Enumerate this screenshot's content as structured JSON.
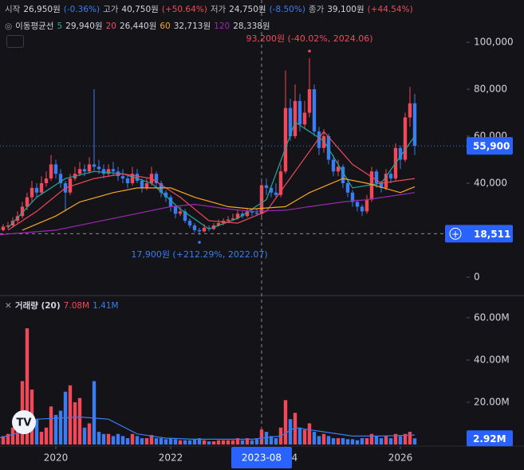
{
  "chart_data": {
    "type": "candlestick",
    "header": [
      {
        "label": "시작",
        "value": "26,950원",
        "change": "(-0.36%)",
        "dir": "down"
      },
      {
        "label": "고가",
        "value": "40,750원",
        "change": "(+50.64%)",
        "dir": "up"
      },
      {
        "label": "저가",
        "value": "24,750원",
        "change": "(-8.50%)",
        "dir": "down"
      },
      {
        "label": "종가",
        "value": "39,100원",
        "change": "(+44.54%)",
        "dir": "up"
      }
    ],
    "ma_title": "이동평균선",
    "x": [
      "2019-01",
      "2019-02",
      "2019-03",
      "2019-04",
      "2019-05",
      "2019-06",
      "2019-07",
      "2019-08",
      "2019-09",
      "2019-10",
      "2019-11",
      "2019-12",
      "2020-01",
      "2020-02",
      "2020-03",
      "2020-04",
      "2020-05",
      "2020-06",
      "2020-07",
      "2020-08",
      "2020-09",
      "2020-10",
      "2020-11",
      "2020-12",
      "2021-01",
      "2021-02",
      "2021-03",
      "2021-04",
      "2021-05",
      "2021-06",
      "2021-07",
      "2021-08",
      "2021-09",
      "2021-10",
      "2021-11",
      "2021-12",
      "2022-01",
      "2022-02",
      "2022-03",
      "2022-04",
      "2022-05",
      "2022-06",
      "2022-07",
      "2022-08",
      "2022-09",
      "2022-10",
      "2022-11",
      "2022-12",
      "2023-01",
      "2023-02",
      "2023-03",
      "2023-04",
      "2023-05",
      "2023-06",
      "2023-07",
      "2023-08",
      "2023-09",
      "2023-10",
      "2023-11",
      "2023-12",
      "2024-01",
      "2024-02",
      "2024-03",
      "2024-04",
      "2024-05",
      "2024-06",
      "2024-07",
      "2024-08",
      "2024-09",
      "2024-10",
      "2024-11",
      "2024-12",
      "2025-01",
      "2025-02",
      "2025-03",
      "2025-04",
      "2025-05",
      "2025-06",
      "2025-07",
      "2025-08",
      "2025-09",
      "2025-10",
      "2025-11",
      "2025-12",
      "2026-01",
      "2026-02",
      "2026-03",
      "2026-04"
    ],
    "open": [
      21000,
      20000,
      21500,
      22000,
      24000,
      26000,
      30000,
      34000,
      38000,
      36000,
      40000,
      42000,
      48000,
      44000,
      40000,
      36000,
      42000,
      44000,
      46000,
      45000,
      48000,
      47000,
      46000,
      44000,
      46000,
      45000,
      43000,
      42000,
      40000,
      44000,
      41000,
      38000,
      40000,
      44000,
      40000,
      36000,
      34000,
      30000,
      27000,
      28000,
      24000,
      22000,
      20000,
      19500,
      21000,
      20500,
      22000,
      23000,
      24000,
      24500,
      25000,
      27000,
      26000,
      28000,
      27500,
      26950,
      39100,
      38000,
      36000,
      35000,
      45000,
      72000,
      60000,
      75000,
      65000,
      70000,
      80000,
      62000,
      55000,
      60000,
      50000,
      45000,
      47000,
      40000,
      36000,
      32000,
      30000,
      28000,
      33000,
      45000,
      40000,
      38000,
      44000,
      42000,
      55000,
      50000,
      68000,
      74000
    ],
    "high": [
      22500,
      22500,
      23500,
      25500,
      28000,
      32000,
      36000,
      41000,
      40000,
      43000,
      45000,
      52000,
      50000,
      46000,
      41000,
      44000,
      47000,
      49000,
      48000,
      51000,
      80000,
      50000,
      48000,
      48000,
      49000,
      47000,
      46000,
      43000,
      47000,
      46000,
      42000,
      42000,
      47000,
      45000,
      41000,
      37000,
      35000,
      31000,
      30000,
      29000,
      25000,
      23000,
      21000,
      22500,
      22000,
      23000,
      24500,
      25000,
      26000,
      27000,
      28500,
      28000,
      29500,
      29000,
      29000,
      40750,
      42000,
      39000,
      40000,
      48000,
      88000,
      76000,
      82000,
      78000,
      75000,
      93200,
      82000,
      64000,
      63000,
      61000,
      52000,
      50000,
      48000,
      42000,
      37000,
      33000,
      31000,
      35000,
      47000,
      46000,
      41000,
      46000,
      45000,
      57000,
      56000,
      70000,
      81000,
      78000
    ],
    "low": [
      19000,
      19500,
      20500,
      21000,
      23000,
      25000,
      28500,
      32000,
      34000,
      35000,
      38500,
      41000,
      42000,
      38000,
      28000,
      35000,
      41000,
      43000,
      43000,
      44000,
      45000,
      44000,
      42000,
      43000,
      43000,
      41000,
      40000,
      38000,
      39000,
      40000,
      36000,
      37000,
      39000,
      38000,
      34000,
      32000,
      28000,
      25000,
      26000,
      23000,
      21000,
      19000,
      17900,
      19000,
      19500,
      20000,
      21500,
      22000,
      23000,
      24000,
      24500,
      25000,
      25500,
      26000,
      26000,
      24750,
      35000,
      34000,
      34000,
      34000,
      44000,
      58000,
      59000,
      62000,
      63000,
      68000,
      60000,
      52000,
      53000,
      48000,
      43000,
      43000,
      38000,
      34000,
      30000,
      28000,
      26000,
      27000,
      32000,
      38000,
      36000,
      37000,
      40000,
      41000,
      46000,
      49000,
      64000,
      52000
    ],
    "close": [
      20000,
      21500,
      22000,
      24000,
      26000,
      30000,
      34000,
      38000,
      36000,
      40000,
      42000,
      48000,
      44000,
      40000,
      36000,
      42000,
      44000,
      46000,
      45000,
      48000,
      47000,
      46000,
      44000,
      46000,
      45000,
      43000,
      42000,
      40000,
      44000,
      41000,
      38000,
      40000,
      44000,
      40000,
      36000,
      34000,
      30000,
      27000,
      28000,
      24000,
      22000,
      20000,
      19500,
      21000,
      20500,
      22000,
      23000,
      24000,
      24500,
      25000,
      27000,
      26000,
      28000,
      27500,
      27000,
      39100,
      38000,
      36000,
      35000,
      45000,
      72000,
      60000,
      75000,
      65000,
      70000,
      80000,
      62000,
      55000,
      60000,
      50000,
      45000,
      47000,
      40000,
      36000,
      32000,
      30000,
      28000,
      33000,
      45000,
      40000,
      38000,
      44000,
      42000,
      55000,
      50000,
      68000,
      74000,
      55900
    ],
    "up_color": "#f0495a",
    "down_color": "#3b7cf0",
    "xlim": [
      "2019-01",
      "2027-03"
    ],
    "xticks": [
      {
        "value": "2020-01",
        "label": "2020"
      },
      {
        "value": "2022-01",
        "label": "2022"
      },
      {
        "value": "2024-01",
        "label": "2024"
      },
      {
        "value": "2026-01",
        "label": "2026"
      }
    ],
    "ylim": [
      -7500,
      118000
    ],
    "yticks": [
      0,
      {
        "value": 40000,
        "label": "40,000"
      },
      {
        "value": 60000,
        "label": "60,000"
      },
      {
        "value": 80000,
        "label": "80,000"
      },
      {
        "value": 100000,
        "label": "100,000"
      }
    ],
    "last_label": "55,900",
    "moving_averages": [
      {
        "name": "5",
        "label": "29,940원",
        "color": "#26a69a",
        "x": [
          "2019-03",
          "2019-09",
          "2020-03",
          "2020-09",
          "2021-03",
          "2021-09",
          "2022-03",
          "2022-09",
          "2023-03",
          "2023-09",
          "2024-03",
          "2024-09",
          "2025-03",
          "2025-09",
          "2026-04"
        ],
        "values": [
          21000,
          34000,
          42000,
          45000,
          44000,
          40000,
          29000,
          20500,
          25000,
          33000,
          66000,
          58000,
          38000,
          40000,
          60000
        ]
      },
      {
        "name": "20",
        "label": "26,440원",
        "color": "#f0495a",
        "x": [
          "2019-03",
          "2019-09",
          "2020-03",
          "2020-09",
          "2021-03",
          "2021-09",
          "2022-03",
          "2022-09",
          "2023-03",
          "2023-09",
          "2024-03",
          "2024-09",
          "2025-03",
          "2025-09",
          "2026-04"
        ],
        "values": [
          20000,
          28000,
          38000,
          42000,
          44000,
          42000,
          34000,
          24000,
          23000,
          28000,
          45000,
          62000,
          48000,
          40000,
          42000
        ]
      },
      {
        "name": "60",
        "label": "32,713원",
        "color": "#f5a623",
        "x": [
          "2019-06",
          "2020-01",
          "2020-06",
          "2021-01",
          "2021-06",
          "2022-01",
          "2022-06",
          "2023-01",
          "2023-06",
          "2024-01",
          "2024-06",
          "2025-01",
          "2025-06",
          "2026-01",
          "2026-04"
        ],
        "values": [
          20000,
          26000,
          32000,
          36000,
          38000,
          38000,
          34000,
          30000,
          29000,
          30000,
          36000,
          42000,
          40000,
          36000,
          38500
        ]
      },
      {
        "name": "120",
        "label": "28,338원",
        "color": "#9c27b0",
        "x": [
          "2019-01",
          "2020-01",
          "2021-01",
          "2022-01",
          "2022-06",
          "2023-01",
          "2023-06",
          "2024-01",
          "2024-06",
          "2025-01",
          "2025-06",
          "2026-04"
        ],
        "values": [
          18000,
          20000,
          25000,
          30000,
          31000,
          29000,
          28000,
          28500,
          30000,
          32000,
          33000,
          36000
        ]
      }
    ],
    "annotations": [
      {
        "text": "93,200원 (-40.02%, 2024.06)",
        "x": "2024-06",
        "value": 93200,
        "side": "above"
      },
      {
        "text": "17,900원 (+212.29%, 2022.07)",
        "x": "2022-07",
        "value": 17900,
        "side": "below"
      }
    ],
    "crosshair": {
      "x": "2023-08",
      "y": {
        "value": 18511,
        "label": "18,511"
      }
    },
    "volume": {
      "name": "거래량 (20)",
      "value_text": "7.08M",
      "ma_text": "1.41M",
      "last_label": "2.92M",
      "values": [
        2000000,
        4000000,
        5000000,
        8000000,
        10000000,
        30000000,
        55000000,
        26000000,
        12000000,
        6000000,
        8000000,
        18000000,
        14000000,
        16000000,
        25000000,
        28000000,
        20000000,
        22000000,
        8000000,
        10000000,
        30000000,
        6000000,
        5000000,
        5000000,
        4000000,
        5000000,
        4000000,
        3000000,
        5000000,
        4000000,
        3000000,
        3000000,
        4500000,
        3000000,
        3000000,
        2500000,
        3000000,
        2500000,
        2000000,
        2000000,
        2000000,
        2500000,
        3000000,
        2000000,
        1500000,
        1500000,
        2000000,
        2000000,
        2000000,
        2000000,
        3000000,
        2000000,
        3000000,
        2000000,
        2500000,
        7080000,
        6000000,
        4000000,
        3000000,
        8000000,
        21000000,
        12000000,
        15000000,
        8000000,
        7000000,
        10000000,
        6000000,
        4000000,
        5000000,
        4000000,
        3000000,
        3000000,
        3000000,
        2500000,
        2500000,
        2000000,
        3000000,
        3000000,
        5000000,
        4000000,
        3000000,
        4000000,
        3000000,
        5000000,
        4000000,
        5000000,
        6000000,
        2920000
      ],
      "ylim": [
        0,
        69000000
      ],
      "yticks": [
        {
          "value": 20000000,
          "label": "20.00M"
        },
        {
          "value": 40000000,
          "label": "40.00M"
        },
        {
          "value": 60000000,
          "label": "60.00M"
        }
      ],
      "ma": {
        "color": "#3b7cf0",
        "x": [
          "2019-01",
          "2019-06",
          "2019-09",
          "2020-06",
          "2020-12",
          "2021-06",
          "2021-12",
          "2022-06",
          "2023-06",
          "2023-12",
          "2024-03",
          "2024-09",
          "2025-03",
          "2025-09",
          "2026-04"
        ],
        "values": [
          3000000,
          6000000,
          12000000,
          13000000,
          12000000,
          5000000,
          3000000,
          2500000,
          2500000,
          4000000,
          8000000,
          6000000,
          4000000,
          4000000,
          4500000
        ]
      }
    }
  }
}
